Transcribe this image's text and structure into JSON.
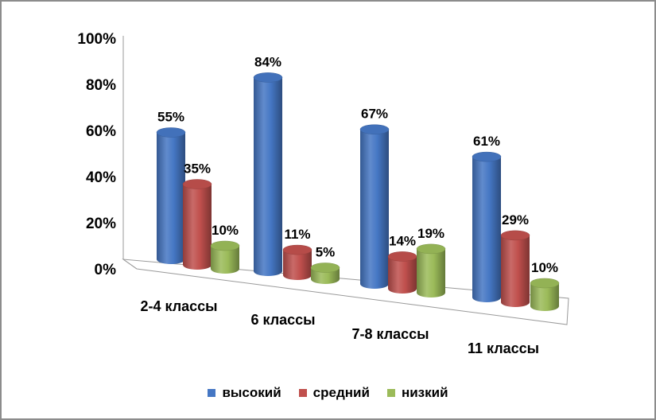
{
  "chart_data": {
    "type": "bar",
    "categories": [
      "2-4 классы",
      "6 классы",
      "7-8 классы",
      "11 классы"
    ],
    "series": [
      {
        "name": "высокий",
        "values": [
          55,
          84,
          67,
          61
        ],
        "labels": [
          "55%",
          "84%",
          "67%",
          "61%"
        ],
        "color": "#4577c4"
      },
      {
        "name": "средний",
        "values": [
          35,
          11,
          14,
          29
        ],
        "labels": [
          "35%",
          "11%",
          "14%",
          "29%"
        ],
        "color": "#c0504d"
      },
      {
        "name": "низкий",
        "values": [
          10,
          5,
          19,
          10
        ],
        "labels": [
          "10%",
          "5%",
          "19%",
          "10%"
        ],
        "color": "#9bbb59"
      }
    ],
    "yticks": [
      "0%",
      "20%",
      "40%",
      "60%",
      "80%",
      "100%"
    ],
    "ylim": [
      0,
      100
    ],
    "grid": false,
    "legend_position": "bottom",
    "style": "3d-cylinder"
  }
}
